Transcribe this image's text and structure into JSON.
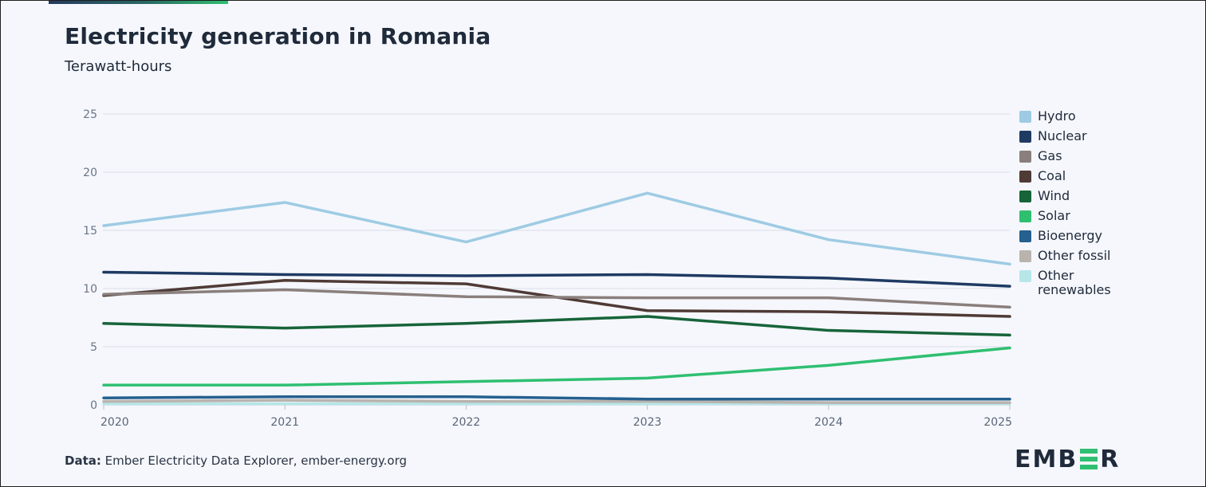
{
  "header": {
    "title": "Electricity generation in Romania",
    "subtitle": "Terawatt-hours"
  },
  "footer": {
    "source_label": "Data:",
    "source_text": "Ember Electricity Data Explorer, ember-energy.org"
  },
  "brand": {
    "prefix": "EMB",
    "suffix": "R"
  },
  "chart_data": {
    "type": "line",
    "title": "Electricity generation in Romania",
    "subtitle": "Terawatt-hours",
    "x": [
      2020,
      2021,
      2022,
      2023,
      2024,
      2025
    ],
    "ylim": [
      0,
      25
    ],
    "yticks": [
      0,
      5,
      10,
      15,
      20,
      25
    ],
    "grid": true,
    "legend_position": "right",
    "series": [
      {
        "name": "Hydro",
        "color": "#9ecbe3",
        "values": [
          15.4,
          17.4,
          14.0,
          18.2,
          14.2,
          12.1
        ]
      },
      {
        "name": "Nuclear",
        "color": "#1f3a63",
        "values": [
          11.4,
          11.2,
          11.1,
          11.2,
          10.9,
          10.2
        ]
      },
      {
        "name": "Gas",
        "color": "#8a7f7c",
        "values": [
          9.5,
          9.9,
          9.3,
          9.2,
          9.2,
          8.4
        ]
      },
      {
        "name": "Coal",
        "color": "#4f3a36",
        "values": [
          9.4,
          10.7,
          10.4,
          8.1,
          8.0,
          7.6
        ]
      },
      {
        "name": "Wind",
        "color": "#17643a",
        "values": [
          7.0,
          6.6,
          7.0,
          7.6,
          6.4,
          6.0
        ]
      },
      {
        "name": "Solar",
        "color": "#2fbf71",
        "values": [
          1.7,
          1.7,
          2.0,
          2.3,
          3.4,
          4.9
        ]
      },
      {
        "name": "Bioenergy",
        "color": "#25608f",
        "values": [
          0.6,
          0.7,
          0.7,
          0.5,
          0.5,
          0.5
        ]
      },
      {
        "name": "Other fossil",
        "color": "#b9b3ae",
        "values": [
          0.3,
          0.4,
          0.3,
          0.3,
          0.2,
          0.2
        ]
      },
      {
        "name": "Other renewables",
        "color": "#b7e6e8",
        "values": [
          0.1,
          0.1,
          0.1,
          0.1,
          0.1,
          0.1
        ]
      }
    ]
  }
}
